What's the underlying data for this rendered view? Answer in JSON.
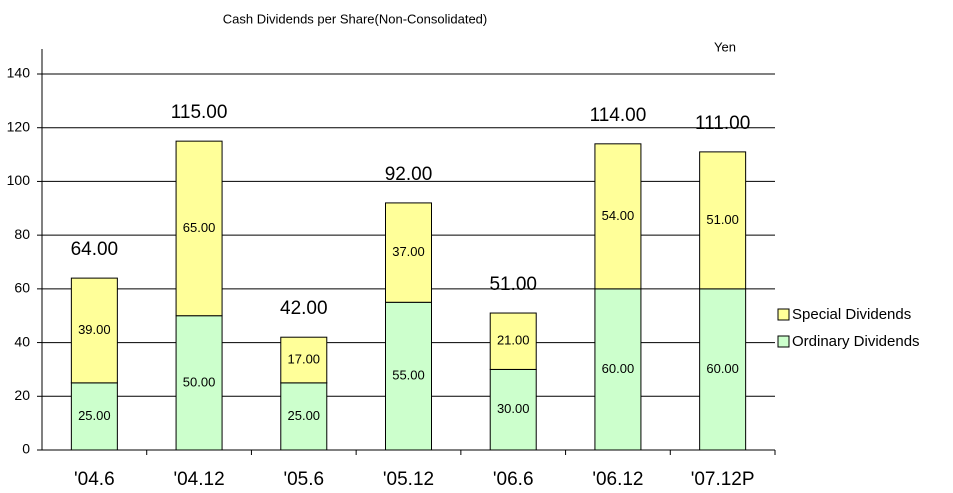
{
  "chart_data": {
    "type": "stacked_bar",
    "title": "Cash Dividends per Share(Non-Consolidated)",
    "y_unit": "Yen",
    "categories": [
      "'04.6",
      "'04.12",
      "'05.6",
      "'05.12",
      "'06.6",
      "'06.12",
      "'07.12P"
    ],
    "series": [
      {
        "name": "Ordinary Dividends",
        "color": "#ccffcc",
        "values": [
          25,
          50,
          25,
          55,
          30,
          60,
          60
        ],
        "value_labels": [
          "25.00",
          "50.00",
          "25.00",
          "55.00",
          "30.00",
          "60.00",
          "60.00"
        ]
      },
      {
        "name": "Special Dividends",
        "color": "#ffff99",
        "values": [
          39,
          65,
          17,
          37,
          21,
          54,
          51
        ],
        "value_labels": [
          "39.00",
          "65.00",
          "17.00",
          "37.00",
          "21.00",
          "54.00",
          "51.00"
        ]
      }
    ],
    "totals": [
      64,
      115,
      42,
      92,
      51,
      114,
      111
    ],
    "total_labels": [
      "64.00",
      "115.00",
      "42.00",
      "92.00",
      "51.00",
      "114.00",
      "111.00"
    ],
    "ylim": [
      0,
      140
    ],
    "yticks": [
      0,
      20,
      40,
      60,
      80,
      100,
      120,
      140
    ],
    "grid": true,
    "legend": "right"
  }
}
